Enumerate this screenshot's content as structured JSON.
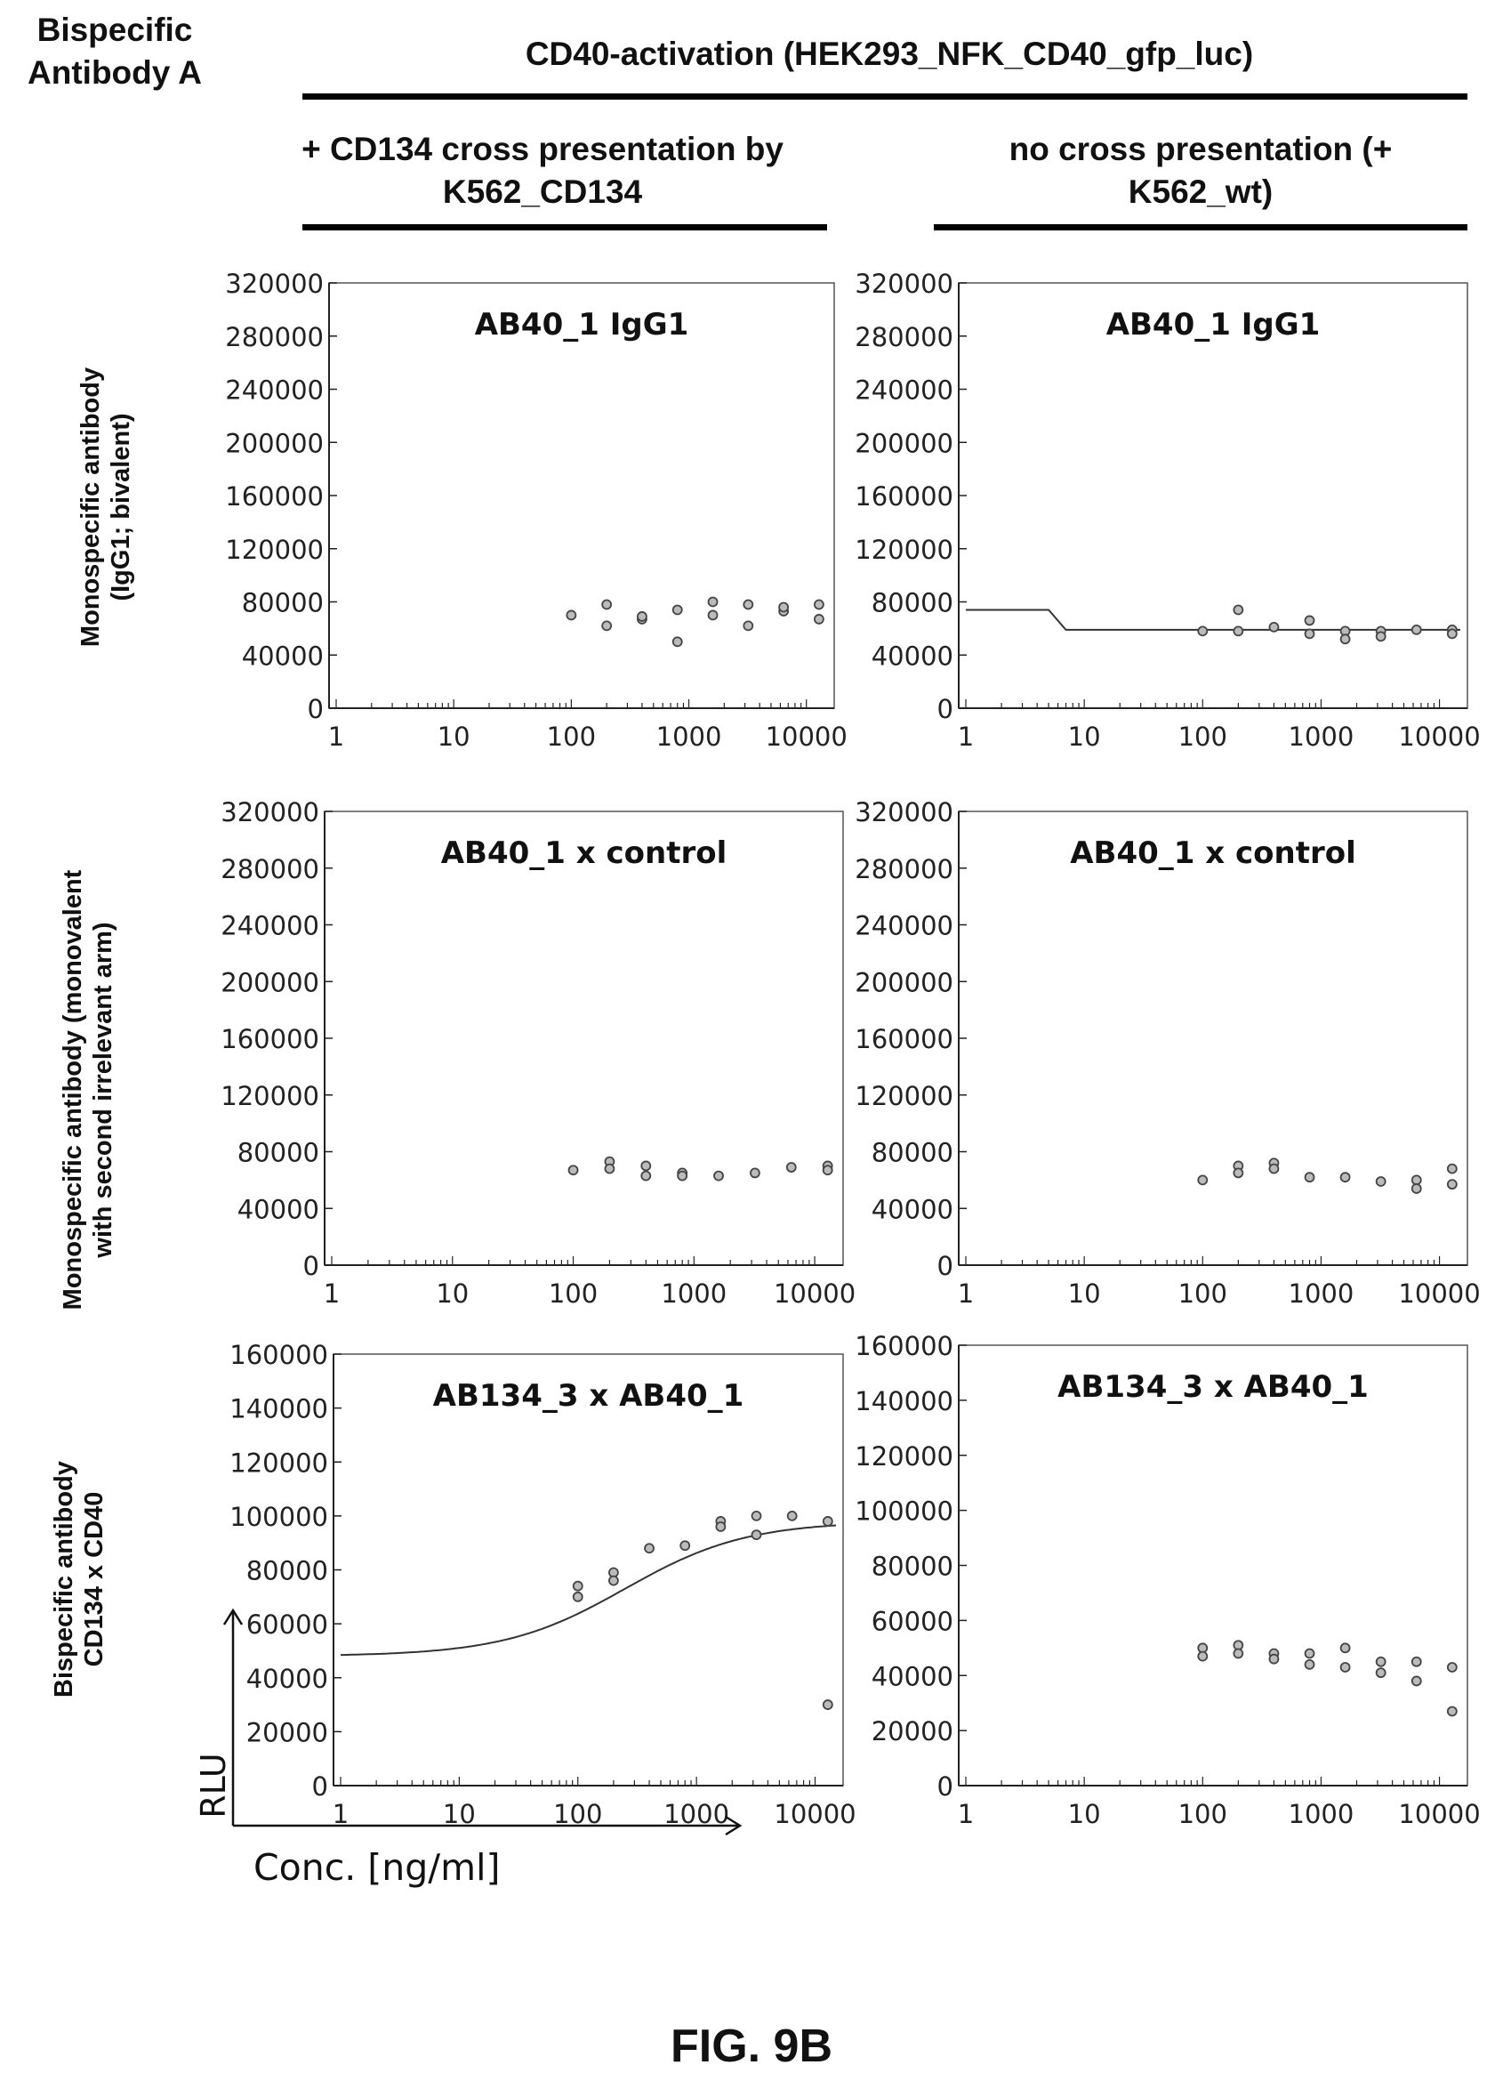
{
  "header": {
    "bispecific_label": "Bispecific Antibody A",
    "title": "CD40-activation (HEK293_NFK_CD40_gfp_luc)",
    "col_left": "+ CD134 cross presentation by K562_CD134",
    "col_right": "no cross presentation (+ K562_wt)"
  },
  "row_labels": [
    "Monospecific antibody (IgG1; bivalent)",
    "Monospecific antibody (monovalent with second irrelevant arm)",
    "Bispecific antibody CD134 x CD40"
  ],
  "axis_labels": {
    "y": "RLU",
    "x": "Conc. [ng/ml]"
  },
  "figure_label": "FIG. 9B",
  "chart_data": [
    {
      "type": "scatter",
      "title": "AB40_1 IgG1",
      "ylim": [
        0,
        320000
      ],
      "yticks": [
        0,
        40000,
        80000,
        120000,
        160000,
        200000,
        240000,
        280000,
        320000
      ],
      "xlim": [
        1,
        15000
      ],
      "xscale": "log",
      "xticks": [
        1,
        10,
        100,
        1000,
        10000
      ],
      "series": [
        {
          "points": [
            [
              100,
              70000
            ],
            [
              200,
              78000
            ],
            [
              200,
              62000
            ],
            [
              400,
              67000
            ],
            [
              400,
              69000
            ],
            [
              800,
              74000
            ],
            [
              800,
              50000
            ],
            [
              1600,
              80000
            ],
            [
              1600,
              70000
            ],
            [
              3200,
              78000
            ],
            [
              3200,
              62000
            ],
            [
              6400,
              73000
            ],
            [
              6400,
              76000
            ],
            [
              12800,
              78000
            ],
            [
              12800,
              67000
            ]
          ]
        }
      ],
      "fit": null
    },
    {
      "type": "scatter",
      "title": "AB40_1 IgG1",
      "ylim": [
        0,
        320000
      ],
      "yticks": [
        0,
        40000,
        80000,
        120000,
        160000,
        200000,
        240000,
        280000,
        320000
      ],
      "xlim": [
        1,
        15000
      ],
      "xscale": "log",
      "xticks": [
        1,
        10,
        100,
        1000,
        10000
      ],
      "series": [
        {
          "points": [
            [
              100,
              58000
            ],
            [
              200,
              74000
            ],
            [
              200,
              58000
            ],
            [
              400,
              61000
            ],
            [
              800,
              66000
            ],
            [
              800,
              56000
            ],
            [
              1600,
              58000
            ],
            [
              1600,
              52000
            ],
            [
              3200,
              58000
            ],
            [
              3200,
              54000
            ],
            [
              6400,
              59000
            ],
            [
              12800,
              59000
            ],
            [
              12800,
              56000
            ]
          ]
        }
      ],
      "fit": {
        "kind": "step",
        "points": [
          [
            1,
            74000
          ],
          [
            5,
            74000
          ],
          [
            7,
            59000
          ],
          [
            15000,
            59000
          ]
        ]
      }
    },
    {
      "type": "scatter",
      "title": "AB40_1 x control",
      "ylim": [
        0,
        320000
      ],
      "yticks": [
        0,
        40000,
        80000,
        120000,
        160000,
        200000,
        240000,
        280000,
        320000
      ],
      "xlim": [
        1,
        15000
      ],
      "xscale": "log",
      "xticks": [
        1,
        10,
        100,
        1000,
        10000
      ],
      "series": [
        {
          "points": [
            [
              100,
              67000
            ],
            [
              200,
              73000
            ],
            [
              200,
              68000
            ],
            [
              400,
              70000
            ],
            [
              400,
              63000
            ],
            [
              800,
              65000
            ],
            [
              800,
              63000
            ],
            [
              1600,
              63000
            ],
            [
              3200,
              65000
            ],
            [
              6400,
              69000
            ],
            [
              12800,
              70000
            ],
            [
              12800,
              67000
            ]
          ]
        }
      ],
      "fit": null
    },
    {
      "type": "scatter",
      "title": "AB40_1 x control",
      "ylim": [
        0,
        320000
      ],
      "yticks": [
        0,
        40000,
        80000,
        120000,
        160000,
        200000,
        240000,
        280000,
        320000
      ],
      "xlim": [
        1,
        15000
      ],
      "xscale": "log",
      "xticks": [
        1,
        10,
        100,
        1000,
        10000
      ],
      "series": [
        {
          "points": [
            [
              100,
              60000
            ],
            [
              200,
              70000
            ],
            [
              200,
              65000
            ],
            [
              400,
              72000
            ],
            [
              400,
              68000
            ],
            [
              800,
              62000
            ],
            [
              1600,
              62000
            ],
            [
              3200,
              59000
            ],
            [
              6400,
              60000
            ],
            [
              6400,
              54000
            ],
            [
              12800,
              68000
            ],
            [
              12800,
              57000
            ]
          ]
        }
      ],
      "fit": null
    },
    {
      "type": "scatter",
      "title": "AB134_3 x AB40_1",
      "ylim": [
        0,
        160000
      ],
      "yticks": [
        0,
        20000,
        40000,
        60000,
        80000,
        100000,
        120000,
        140000,
        160000
      ],
      "xlim": [
        1,
        15000
      ],
      "xscale": "log",
      "xticks": [
        1,
        10,
        100,
        1000,
        10000
      ],
      "series": [
        {
          "points": [
            [
              100,
              74000
            ],
            [
              100,
              70000
            ],
            [
              200,
              79000
            ],
            [
              200,
              76000
            ],
            [
              400,
              88000
            ],
            [
              800,
              89000
            ],
            [
              1600,
              98000
            ],
            [
              1600,
              96000
            ],
            [
              3200,
              100000
            ],
            [
              3200,
              93000
            ],
            [
              6400,
              100000
            ],
            [
              12800,
              98000
            ],
            [
              12800,
              30000
            ]
          ]
        }
      ],
      "fit": {
        "kind": "sigmoid",
        "bottom": 48000,
        "top": 98000,
        "ec50": 250,
        "hill": 0.85
      }
    },
    {
      "type": "scatter",
      "title": "AB134_3 x AB40_1",
      "ylim": [
        0,
        160000
      ],
      "yticks": [
        0,
        20000,
        40000,
        60000,
        80000,
        100000,
        120000,
        140000,
        160000
      ],
      "xlim": [
        1,
        15000
      ],
      "xscale": "log",
      "xticks": [
        1,
        10,
        100,
        1000,
        10000
      ],
      "series": [
        {
          "points": [
            [
              100,
              50000
            ],
            [
              100,
              47000
            ],
            [
              200,
              51000
            ],
            [
              200,
              48000
            ],
            [
              400,
              48000
            ],
            [
              400,
              46000
            ],
            [
              800,
              48000
            ],
            [
              800,
              44000
            ],
            [
              1600,
              50000
            ],
            [
              1600,
              43000
            ],
            [
              3200,
              45000
            ],
            [
              3200,
              41000
            ],
            [
              6400,
              45000
            ],
            [
              6400,
              38000
            ],
            [
              12800,
              43000
            ],
            [
              12800,
              27000
            ]
          ]
        }
      ],
      "fit": null
    }
  ]
}
